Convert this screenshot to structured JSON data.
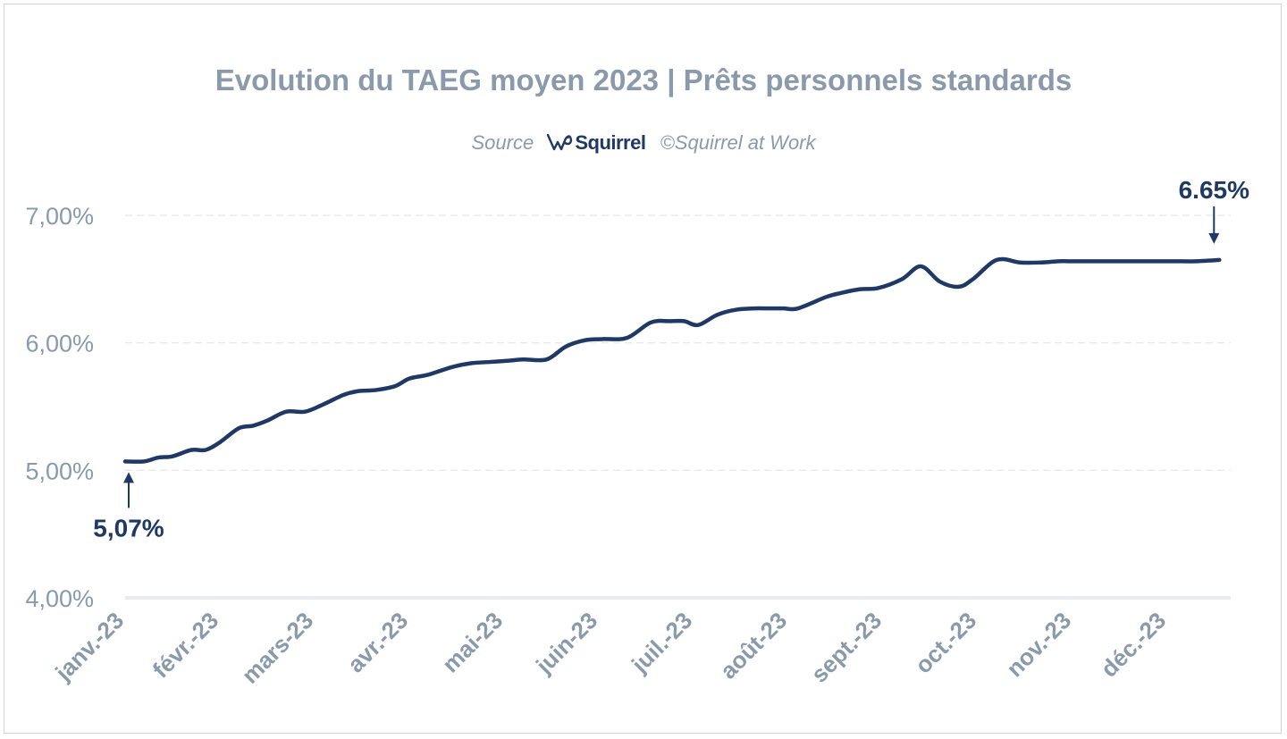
{
  "colors": {
    "line": "#1f3864",
    "axis_text": "#8a9aab",
    "grid": "#e3e6ea",
    "baseline": "#e8ecf0"
  },
  "subtitle": {
    "source_label": "Source",
    "brand": "Squirrel",
    "brand_icon": "squirrel-logo-icon",
    "copyright": "©Squirrel at Work"
  },
  "chart_data": {
    "type": "line",
    "title": "Evolution du TAEG moyen 2023 | Prêts personnels standards",
    "xlabel": "",
    "ylabel": "",
    "ylim": [
      4.0,
      7.0
    ],
    "yticks": [
      {
        "value": 4.0,
        "label": "4,00%"
      },
      {
        "value": 5.0,
        "label": "5,00%"
      },
      {
        "value": 6.0,
        "label": "6,00%"
      },
      {
        "value": 7.0,
        "label": "7,00%"
      }
    ],
    "categories": [
      "janv.-23",
      "févr.-23",
      "mars-23",
      "avr.-23",
      "mai-23",
      "juin-23",
      "juil.-23",
      "août-23",
      "sept.-23",
      "oct.-23",
      "nov.-23",
      "déc.-23"
    ],
    "grid": true,
    "series": [
      {
        "name": "TAEG moyen",
        "x": [
          0,
          0.2,
          0.35,
          0.5,
          0.7,
          0.85,
          1.0,
          1.2,
          1.35,
          1.5,
          1.7,
          1.9,
          2.1,
          2.3,
          2.45,
          2.65,
          2.85,
          3.0,
          3.2,
          3.45,
          3.65,
          3.85,
          4.05,
          4.2,
          4.45,
          4.65,
          4.85,
          5.05,
          5.3,
          5.55,
          5.75,
          5.9,
          6.05,
          6.25,
          6.45,
          6.65,
          6.8,
          6.95,
          7.1,
          7.4,
          7.55,
          7.75,
          7.95,
          8.2,
          8.4,
          8.6,
          8.8,
          8.95,
          9.2,
          9.45,
          9.65,
          9.85,
          9.95,
          10.1,
          10.25,
          10.4,
          10.55,
          10.75,
          10.95,
          11.1,
          11.3,
          11.55
        ],
        "values": [
          5.07,
          5.07,
          5.1,
          5.11,
          5.16,
          5.16,
          5.22,
          5.33,
          5.35,
          5.39,
          5.46,
          5.46,
          5.52,
          5.59,
          5.62,
          5.63,
          5.66,
          5.72,
          5.75,
          5.81,
          5.84,
          5.85,
          5.86,
          5.87,
          5.87,
          5.97,
          6.02,
          6.03,
          6.04,
          6.16,
          6.17,
          6.17,
          6.14,
          6.22,
          6.26,
          6.27,
          6.27,
          6.27,
          6.27,
          6.36,
          6.39,
          6.42,
          6.43,
          6.5,
          6.6,
          6.48,
          6.44,
          6.5,
          6.65,
          6.63,
          6.63,
          6.64,
          6.64,
          6.64,
          6.64,
          6.64,
          6.64,
          6.64,
          6.64,
          6.64,
          6.64,
          6.65
        ]
      }
    ],
    "annotations": [
      {
        "label": "5,07%",
        "x": 0,
        "value": 5.07,
        "arrow": "up"
      },
      {
        "label": "6.65%",
        "x": 11.55,
        "value": 6.65,
        "arrow": "down"
      }
    ]
  }
}
